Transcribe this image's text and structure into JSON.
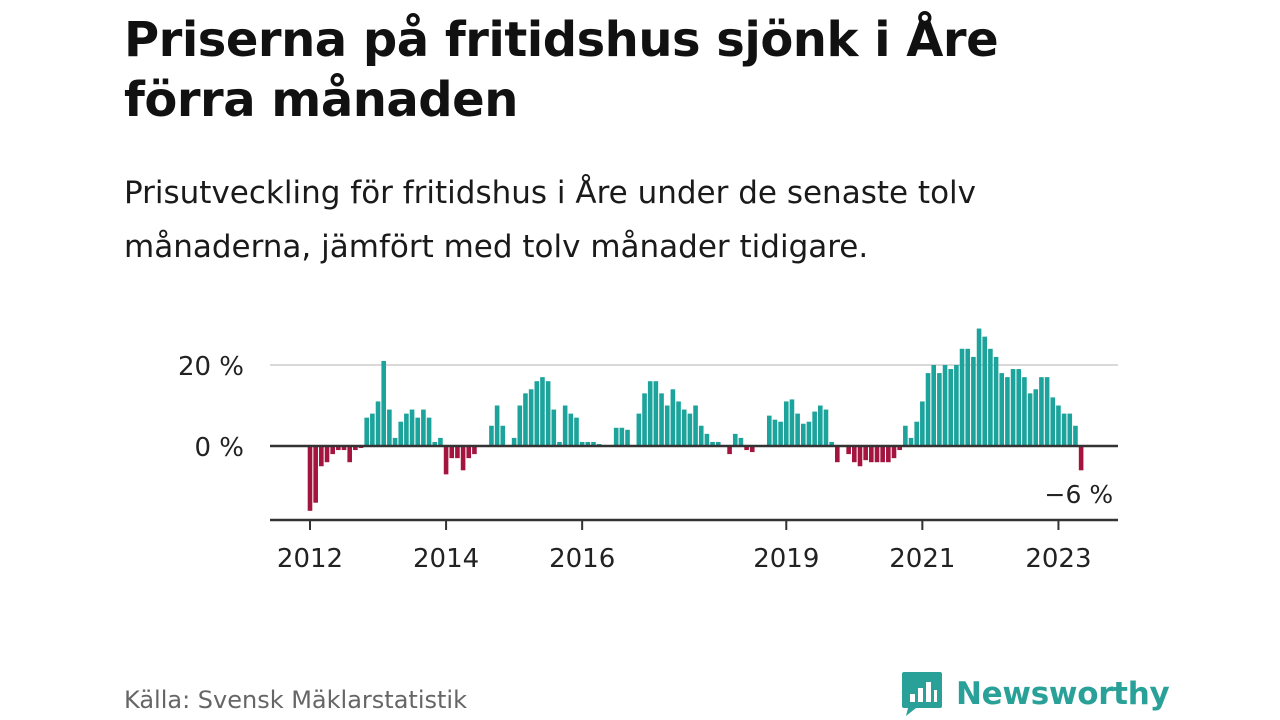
{
  "title": "Priserna på fritidshus sjönk i Åre förra månaden",
  "subtitle": "Prisutveckling för fritidshus i Åre under de senaste tolv månaderna, jämfört med tolv månader tidigare.",
  "source": "Källa: Svensk Mäklarstatistik",
  "brand": {
    "name": "Newsworthy",
    "icon": "newsworthy-logo-icon",
    "color": "#2aa198"
  },
  "colors": {
    "positive": "#1ba39c",
    "negative": "#a3143f",
    "axis": "#333333",
    "grid": "#d9d9d9"
  },
  "chart_data": {
    "type": "bar",
    "title": "Priserna på fritidshus sjönk i Åre förra månaden",
    "subtitle": "Prisutveckling för fritidshus i Åre under de senaste tolv månaderna, jämfört med tolv månader tidigare.",
    "xlabel": "",
    "ylabel": "",
    "ylim": [
      -18,
      29
    ],
    "yticks": [
      {
        "value": 0,
        "label": "0 %"
      },
      {
        "value": 20,
        "label": "20 %"
      }
    ],
    "xticks": [
      {
        "index": 0,
        "label": "2012"
      },
      {
        "index": 24,
        "label": "2014"
      },
      {
        "index": 48,
        "label": "2016"
      },
      {
        "index": 84,
        "label": "2019"
      },
      {
        "index": 108,
        "label": "2021"
      },
      {
        "index": 132,
        "label": "2023"
      }
    ],
    "grid": true,
    "first_period": "2012-01",
    "last_value_label": "−6 %",
    "values": [
      -16,
      -14,
      -5,
      -4,
      -2,
      -1,
      -1,
      -4,
      -1,
      -0.5,
      7,
      8,
      11,
      21,
      9,
      2,
      6,
      8,
      9,
      7,
      9,
      7,
      1,
      2,
      -7,
      -3,
      -3,
      -6,
      -3,
      -2,
      0,
      0,
      5,
      10,
      5,
      0,
      2,
      10,
      13,
      14,
      16,
      17,
      16,
      9,
      1,
      10,
      8,
      7,
      1,
      1,
      1,
      0.5,
      0,
      0,
      4.5,
      4.5,
      4,
      0,
      8,
      13,
      16,
      16,
      13,
      10,
      14,
      11,
      9,
      8,
      10,
      5,
      3,
      1,
      1,
      0,
      -2,
      3,
      2,
      -1,
      -1.5,
      0,
      0,
      7.5,
      6.5,
      6,
      11,
      11.5,
      8,
      5.5,
      6,
      8.5,
      10,
      9,
      1,
      -4,
      0,
      -2,
      -4,
      -5,
      -3.5,
      -4,
      -4,
      -4,
      -4,
      -3,
      -1,
      5,
      2,
      6,
      11,
      18,
      20,
      18,
      20,
      19,
      20,
      24,
      24,
      22,
      29,
      27,
      24,
      22,
      18,
      17,
      19,
      19,
      17,
      13,
      14,
      17,
      17,
      12,
      10,
      8,
      8,
      5,
      -6
    ]
  }
}
